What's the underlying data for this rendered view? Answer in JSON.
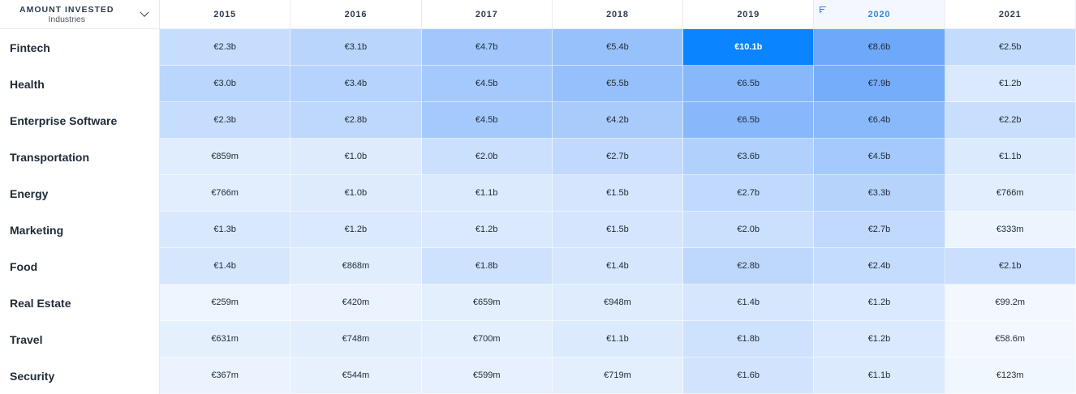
{
  "header": {
    "corner_title": "AMOUNT INVESTED",
    "corner_subtitle": "Industries",
    "years": [
      "2015",
      "2016",
      "2017",
      "2018",
      "2019",
      "2020",
      "2021"
    ],
    "sorted_year": "2020"
  },
  "colors": {
    "max_cell": "#0a84ff",
    "heat_base": "#e8f1fd",
    "sort_accent": "#3b82d6"
  },
  "rows": [
    {
      "industry": "Fintech",
      "labels": [
        "€2.3b",
        "€3.1b",
        "€4.7b",
        "€5.4b",
        "€10.1b",
        "€8.6b",
        "€2.5b"
      ],
      "values": [
        2.3,
        3.1,
        4.7,
        5.4,
        10.1,
        8.6,
        2.5
      ]
    },
    {
      "industry": "Health",
      "labels": [
        "€3.0b",
        "€3.4b",
        "€4.5b",
        "€5.5b",
        "€6.5b",
        "€7.9b",
        "€1.2b"
      ],
      "values": [
        3.0,
        3.4,
        4.5,
        5.5,
        6.5,
        7.9,
        1.2
      ]
    },
    {
      "industry": "Enterprise Software",
      "labels": [
        "€2.3b",
        "€2.8b",
        "€4.5b",
        "€4.2b",
        "€6.5b",
        "€6.4b",
        "€2.2b"
      ],
      "values": [
        2.3,
        2.8,
        4.5,
        4.2,
        6.5,
        6.4,
        2.2
      ]
    },
    {
      "industry": "Transportation",
      "labels": [
        "€859m",
        "€1.0b",
        "€2.0b",
        "€2.7b",
        "€3.6b",
        "€4.5b",
        "€1.1b"
      ],
      "values": [
        0.859,
        1.0,
        2.0,
        2.7,
        3.6,
        4.5,
        1.1
      ]
    },
    {
      "industry": "Energy",
      "labels": [
        "€766m",
        "€1.0b",
        "€1.1b",
        "€1.5b",
        "€2.7b",
        "€3.3b",
        "€766m"
      ],
      "values": [
        0.766,
        1.0,
        1.1,
        1.5,
        2.7,
        3.3,
        0.766
      ]
    },
    {
      "industry": "Marketing",
      "labels": [
        "€1.3b",
        "€1.2b",
        "€1.2b",
        "€1.5b",
        "€2.0b",
        "€2.7b",
        "€333m"
      ],
      "values": [
        1.3,
        1.2,
        1.2,
        1.5,
        2.0,
        2.7,
        0.333
      ]
    },
    {
      "industry": "Food",
      "labels": [
        "€1.4b",
        "€868m",
        "€1.8b",
        "€1.4b",
        "€2.8b",
        "€2.4b",
        "€2.1b"
      ],
      "values": [
        1.4,
        0.868,
        1.8,
        1.4,
        2.8,
        2.4,
        2.1
      ]
    },
    {
      "industry": "Real Estate",
      "labels": [
        "€259m",
        "€420m",
        "€659m",
        "€948m",
        "€1.4b",
        "€1.2b",
        "€99.2m"
      ],
      "values": [
        0.259,
        0.42,
        0.659,
        0.948,
        1.4,
        1.2,
        0.0992
      ]
    },
    {
      "industry": "Travel",
      "labels": [
        "€631m",
        "€748m",
        "€700m",
        "€1.1b",
        "€1.8b",
        "€1.2b",
        "€58.6m"
      ],
      "values": [
        0.631,
        0.748,
        0.7,
        1.1,
        1.8,
        1.2,
        0.0586
      ]
    },
    {
      "industry": "Security",
      "labels": [
        "€367m",
        "€544m",
        "€599m",
        "€719m",
        "€1.6b",
        "€1.1b",
        "€123m"
      ],
      "values": [
        0.367,
        0.544,
        0.599,
        0.719,
        1.6,
        1.1,
        0.123
      ]
    }
  ]
}
